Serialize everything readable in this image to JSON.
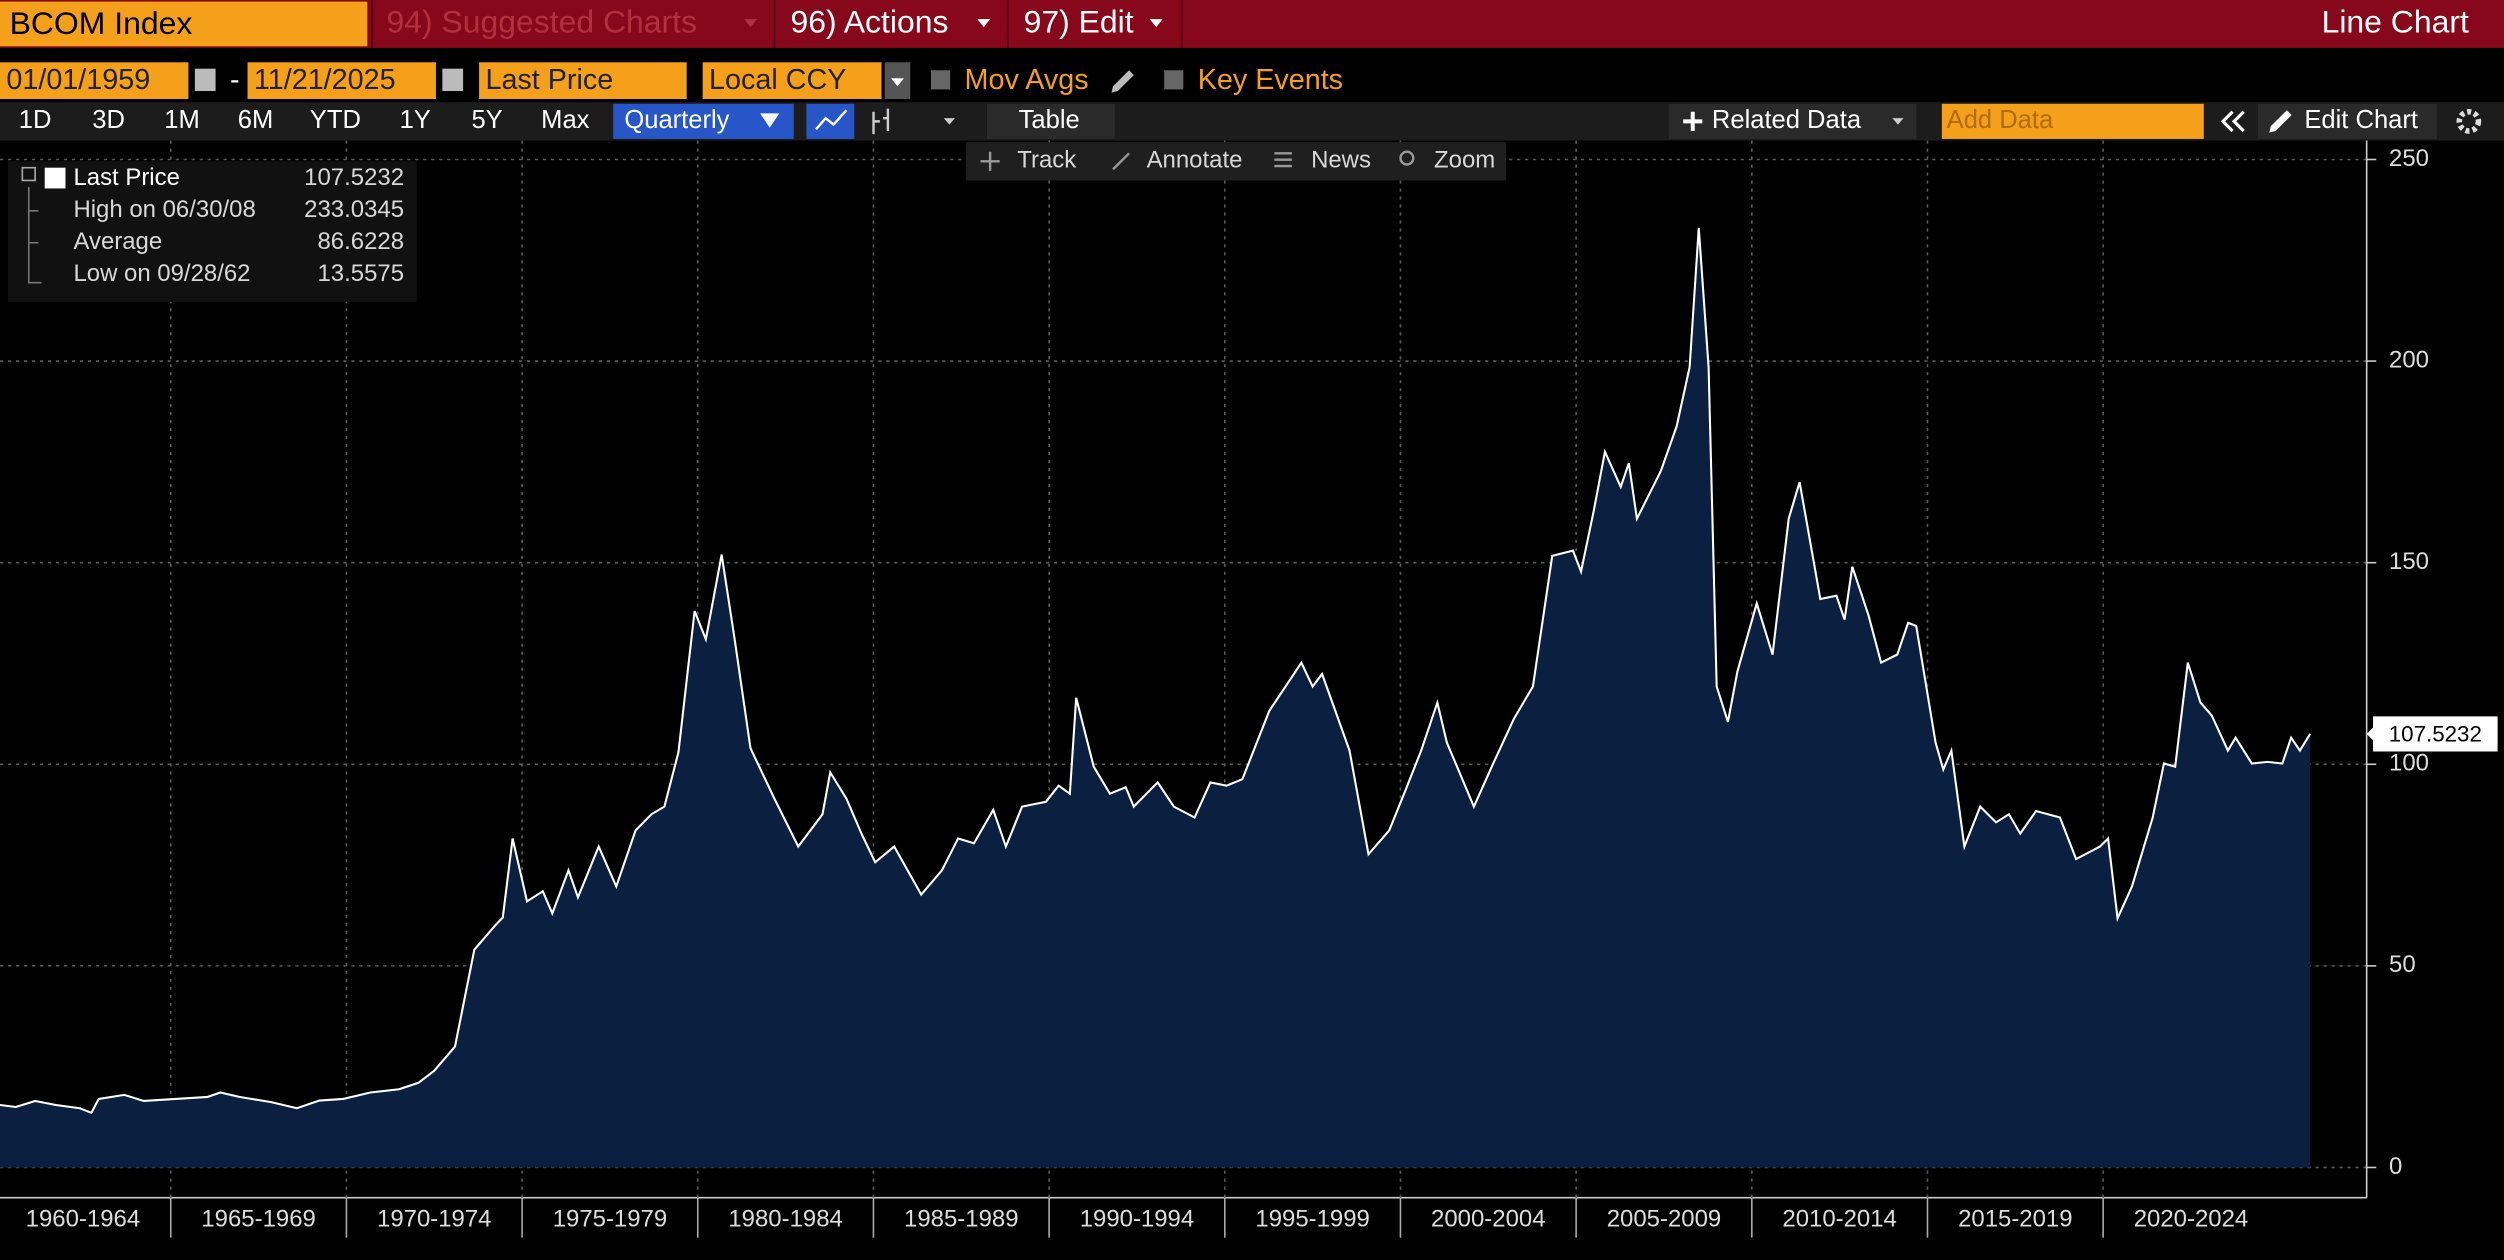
{
  "toolbar": {
    "security": "BCOM Index",
    "menus": [
      "94) Suggested Charts",
      "96) Actions",
      "97) Edit"
    ],
    "view_name": "Line Chart"
  },
  "controls": {
    "start_date": "01/01/1959",
    "separator": "-",
    "end_date": "11/21/2025",
    "field": "Last Price",
    "currency": "Local CCY",
    "toggles": [
      "Mov Avgs",
      "Key Events"
    ]
  },
  "periods": [
    "1D",
    "3D",
    "1M",
    "6M",
    "YTD",
    "1Y",
    "5Y",
    "Max"
  ],
  "frequency": "Quarterly",
  "table_button": "Table",
  "related_data": "Related Data",
  "add_data_placeholder": "Add Data",
  "edit_chart": "Edit Chart",
  "chart_tools": [
    "Track",
    "Annotate",
    "News",
    "Zoom"
  ],
  "stats": [
    {
      "label": "High on 06/30/08",
      "value": 233.0345
    },
    {
      "label": "Average",
      "value": 86.6228
    },
    {
      "label": "Low on 09/28/62",
      "value": 13.5575
    }
  ],
  "chart_data": {
    "type": "area",
    "grid": true,
    "xlim": [
      1960.14,
      2027.5
    ],
    "ylim": [
      -7.5,
      254.7
    ],
    "yticks": [
      0,
      50,
      100,
      150,
      200,
      250
    ],
    "xticks": [
      {
        "value": 1960,
        "label": "1960-1964"
      },
      {
        "value": 1965,
        "label": "1965-1969"
      },
      {
        "value": 1970,
        "label": "1970-1974"
      },
      {
        "value": 1975,
        "label": "1975-1979"
      },
      {
        "value": 1980,
        "label": "1980-1984"
      },
      {
        "value": 1985,
        "label": "1985-1989"
      },
      {
        "value": 1990,
        "label": "1990-1994"
      },
      {
        "value": 1995,
        "label": "1995-1999"
      },
      {
        "value": 2000,
        "label": "2000-2004"
      },
      {
        "value": 2005,
        "label": "2005-2009"
      },
      {
        "value": 2010,
        "label": "2010-2014"
      },
      {
        "value": 2015,
        "label": "2015-2019"
      },
      {
        "value": 2020,
        "label": "2020-2024"
      }
    ],
    "series": [
      {
        "name": "Last Price",
        "color": "#ffffff",
        "area_color": "#0b2040",
        "x": [
          1960.14,
          1960.59,
          1961.14,
          1961.73,
          1962.41,
          1962.74,
          1962.95,
          1963.68,
          1964.23,
          1965.14,
          1966.05,
          1966.41,
          1966.95,
          1967.86,
          1968.59,
          1969.23,
          1969.91,
          1970.68,
          1971.5,
          1972.05,
          1972.5,
          1973.09,
          1973.64,
          1974.23,
          1974.45,
          1974.73,
          1975.14,
          1975.59,
          1975.86,
          1976.32,
          1976.59,
          1977.18,
          1977.68,
          1978.23,
          1978.68,
          1979.05,
          1979.45,
          1979.91,
          1980.23,
          1980.68,
          1981.05,
          1981.5,
          1982.18,
          1982.86,
          1983.55,
          1983.77,
          1984.23,
          1984.68,
          1985.05,
          1985.59,
          1986.36,
          1986.95,
          1987.41,
          1987.86,
          1988.41,
          1988.77,
          1989.23,
          1989.91,
          1990.27,
          1990.59,
          1990.77,
          1991.27,
          1991.73,
          1992.18,
          1992.41,
          1993.09,
          1993.55,
          1994.14,
          1994.59,
          1995.05,
          1995.5,
          1996.27,
          1996.73,
          1997.18,
          1997.5,
          1997.77,
          1998.55,
          1999.09,
          1999.68,
          2000.14,
          2000.59,
          2001.05,
          2001.32,
          2002.09,
          2002.64,
          2003.23,
          2003.77,
          2004.32,
          2004.91,
          2005.14,
          2005.5,
          2005.82,
          2006.27,
          2006.5,
          2006.73,
          2007.41,
          2007.86,
          2008.23,
          2008.49,
          2008.77,
          2009.0,
          2009.32,
          2009.59,
          2010.14,
          2010.59,
          2011.05,
          2011.36,
          2011.95,
          2012.41,
          2012.64,
          2012.86,
          2013.32,
          2013.68,
          2014.14,
          2014.45,
          2014.68,
          2015.23,
          2015.45,
          2015.68,
          2016.05,
          2016.5,
          2016.95,
          2017.32,
          2017.64,
          2018.09,
          2018.77,
          2019.23,
          2019.91,
          2020.14,
          2020.41,
          2020.82,
          2021.41,
          2021.73,
          2022.05,
          2022.41,
          2022.77,
          2023.09,
          2023.55,
          2023.77,
          2024.23,
          2024.68,
          2025.1,
          2025.35,
          2025.6,
          2025.89
        ],
        "values": [
          15.5,
          15,
          16.5,
          15.5,
          14.7,
          13.5575,
          17,
          18,
          16.5,
          17,
          17.5,
          18.6,
          17.5,
          16.2,
          14.7,
          16.6,
          17,
          18.6,
          19.4,
          21,
          24,
          30,
          54,
          60,
          62,
          81.6,
          66,
          68.5,
          63,
          73.7,
          67,
          79.6,
          69.7,
          83.6,
          87.6,
          89.5,
          103,
          138,
          131,
          152,
          131,
          104,
          91.5,
          79.6,
          87.6,
          98,
          91.5,
          82.4,
          75.7,
          79.6,
          67.7,
          73.7,
          81.6,
          80.4,
          88.7,
          79.6,
          89.5,
          90.7,
          94.7,
          92.7,
          116.5,
          99.4,
          92.7,
          94.3,
          89.5,
          95.5,
          89.5,
          86.8,
          95.5,
          94.7,
          96.3,
          113.3,
          119.3,
          125.2,
          119.3,
          122.4,
          103.4,
          77.7,
          83.6,
          93.5,
          103.4,
          115.3,
          105.4,
          89.5,
          100.2,
          111.3,
          119.3,
          151.7,
          153,
          147.8,
          162.8,
          177.5,
          168.8,
          174.7,
          160.9,
          172.7,
          183.8,
          198.5,
          233.0345,
          198.5,
          119.3,
          110.5,
          123,
          139.9,
          127.2,
          160.9,
          170,
          141,
          141.8,
          135.9,
          149,
          137,
          125.2,
          127.2,
          135.1,
          134.3,
          105.4,
          98.7,
          103.4,
          79.6,
          89.5,
          85.6,
          87.6,
          82.8,
          88.4,
          86.8,
          76.5,
          79.6,
          81.6,
          61.8,
          69.7,
          86.8,
          100.2,
          99.4,
          125.2,
          115.3,
          112.1,
          103.4,
          106.6,
          100.2,
          100.6,
          100.2,
          106.6,
          103.4,
          107.5232
        ]
      }
    ]
  }
}
